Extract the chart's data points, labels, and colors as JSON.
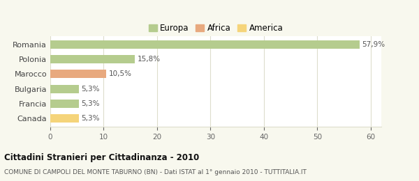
{
  "categories": [
    "Romania",
    "Polonia",
    "Marocco",
    "Bulgaria",
    "Francia",
    "Canada"
  ],
  "values": [
    57.9,
    15.8,
    10.5,
    5.3,
    5.3,
    5.3
  ],
  "labels": [
    "57,9%",
    "15,8%",
    "10,5%",
    "5,3%",
    "5,3%",
    "5,3%"
  ],
  "colors": [
    "#b5cc8e",
    "#b5cc8e",
    "#e8a97e",
    "#b5cc8e",
    "#b5cc8e",
    "#f5d47a"
  ],
  "legend": [
    {
      "label": "Europa",
      "color": "#b5cc8e"
    },
    {
      "label": "Africa",
      "color": "#e8a97e"
    },
    {
      "label": "America",
      "color": "#f5d47a"
    }
  ],
  "xlim": [
    0,
    62
  ],
  "xticks": [
    0,
    10,
    20,
    30,
    40,
    50,
    60
  ],
  "title": "Cittadini Stranieri per Cittadinanza - 2010",
  "subtitle": "COMUNE DI CAMPOLI DEL MONTE TABURNO (BN) - Dati ISTAT al 1° gennaio 2010 - TUTTITALIA.IT",
  "background_color": "#f8f8ee",
  "plot_bg_color": "#ffffff",
  "grid_color": "#ddddcc"
}
